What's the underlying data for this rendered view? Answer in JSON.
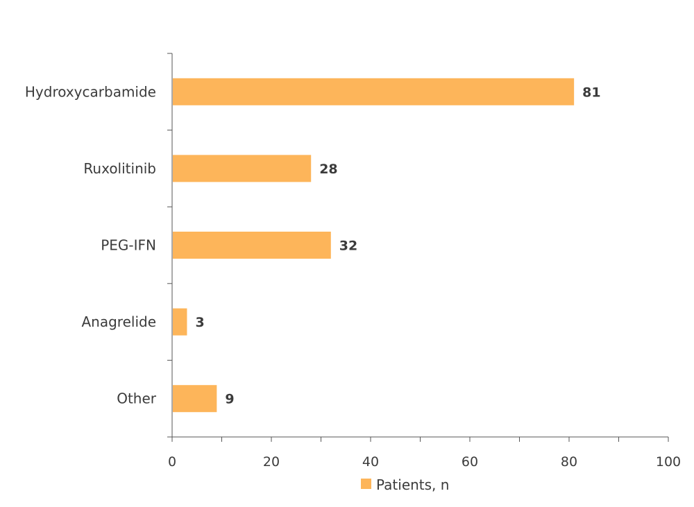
{
  "chart_data": {
    "type": "bar",
    "orientation": "horizontal",
    "categories": [
      "Hydroxycarbamide",
      "Ruxolitinib",
      "PEG-IFN",
      "Anagrelide",
      "Other"
    ],
    "series": [
      {
        "name": "Patients, n",
        "values": [
          81,
          28,
          32,
          3,
          9
        ],
        "data_labels": [
          "81",
          "28",
          "32",
          "3",
          "9"
        ],
        "color": "#FDB55A"
      }
    ],
    "title": "",
    "xlabel": "",
    "ylabel": "",
    "xlim": [
      0,
      100
    ],
    "x_ticks": [
      0,
      20,
      40,
      60,
      80,
      100
    ],
    "x_tick_labels": [
      "0",
      "20",
      "40",
      "60",
      "80",
      "100"
    ],
    "grid": false,
    "legend": {
      "position": "bottom-center",
      "entries": [
        "Patients, n"
      ]
    },
    "colors": {
      "bar": "#FDB55A",
      "axis": "#555555",
      "text": "#3b3b3b"
    }
  }
}
